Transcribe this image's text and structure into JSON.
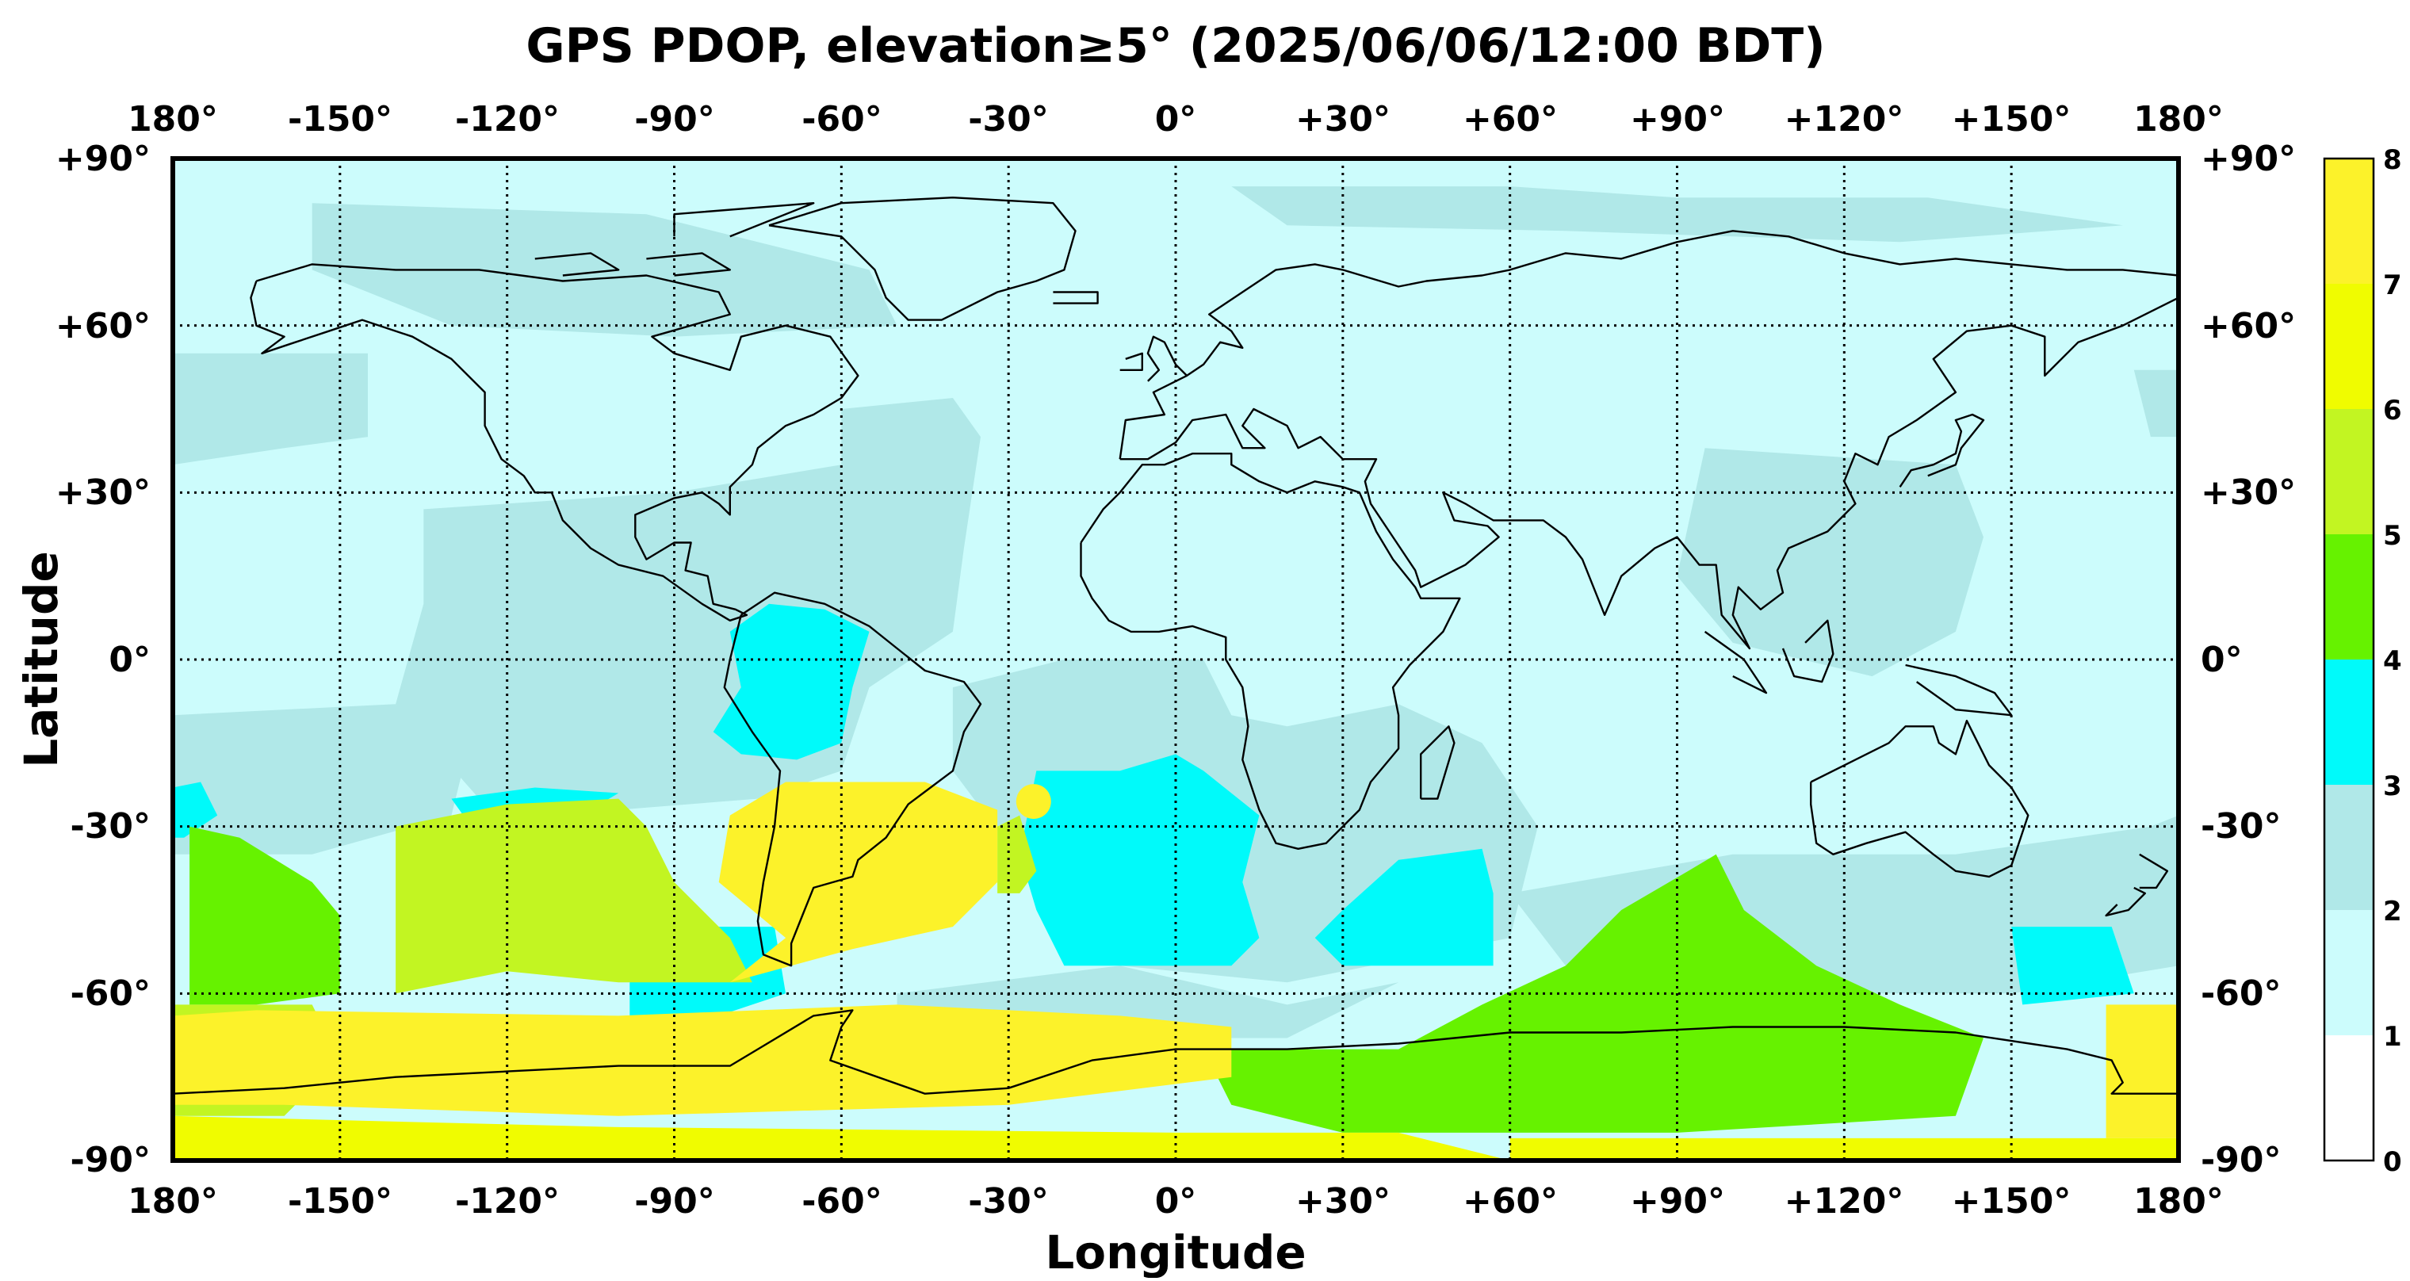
{
  "title": "GPS PDOP, elevation≥5° (2025/06/06/12:00 BDT)",
  "xlabel": "Longitude",
  "ylabel": "Latitude",
  "lon_ticks": [
    "180°",
    "-150°",
    "-120°",
    "-90°",
    "-60°",
    "-30°",
    "0°",
    "+30°",
    "+60°",
    "+90°",
    "+120°",
    "+150°",
    "180°"
  ],
  "lat_ticks": [
    "+90°",
    "+60°",
    "+30°",
    "0°",
    "-30°",
    "-60°",
    "-90°"
  ],
  "colorbar": {
    "ticks": [
      "0",
      "1",
      "2",
      "3",
      "4",
      "5",
      "6",
      "7",
      "8"
    ],
    "colors": [
      "#ffffff",
      "#ccfcfc",
      "#b0e8e8",
      "#00fafa",
      "#66f200",
      "#c2f522",
      "#f0fc00",
      "#fcf22a"
    ]
  },
  "chart_data": {
    "type": "heatmap",
    "title": "GPS PDOP, elevation≥5° (2025/06/06/12:00 BDT)",
    "xlabel": "Longitude",
    "ylabel": "Latitude",
    "xlim": [
      -180,
      180
    ],
    "ylim": [
      -90,
      90
    ],
    "value_range": [
      0,
      8
    ],
    "grid": true,
    "regions": [
      {
        "name": "background",
        "pdop_range": [
          1,
          2
        ]
      },
      {
        "lon": [
          -180,
          -145
        ],
        "lat": [
          15,
          55
        ],
        "pdop_range": [
          2,
          3
        ]
      },
      {
        "lon": [
          -135,
          -40
        ],
        "lat": [
          -25,
          30
        ],
        "pdop_range": [
          2,
          3
        ]
      },
      {
        "lon": [
          -80,
          -50
        ],
        "lat": [
          -15,
          5
        ],
        "pdop_range": [
          3,
          4
        ]
      },
      {
        "lon": [
          -25,
          15
        ],
        "lat": [
          -55,
          -15
        ],
        "pdop_range": [
          3,
          4
        ]
      },
      {
        "lon": [
          30,
          60
        ],
        "lat": [
          -55,
          -35
        ],
        "pdop_range": [
          3,
          4
        ]
      },
      {
        "lon": [
          -177,
          -150
        ],
        "lat": [
          -60,
          -30
        ],
        "pdop_range": [
          4,
          5
        ]
      },
      {
        "lon": [
          -140,
          -75
        ],
        "lat": [
          -60,
          -25
        ],
        "pdop_range": [
          5,
          6
        ]
      },
      {
        "lon": [
          -75,
          -30
        ],
        "lat": [
          -58,
          -25
        ],
        "pdop_range": [
          7,
          8
        ]
      },
      {
        "lon": [
          -180,
          10
        ],
        "lat": [
          -90,
          -62
        ],
        "pdop_range": [
          6,
          8
        ]
      },
      {
        "lon": [
          50,
          140
        ],
        "lat": [
          -85,
          -40
        ],
        "pdop_range": [
          4,
          5
        ]
      },
      {
        "lon": [
          165,
          180
        ],
        "lat": [
          -90,
          -62
        ],
        "pdop_range": [
          7,
          8
        ]
      }
    ]
  }
}
